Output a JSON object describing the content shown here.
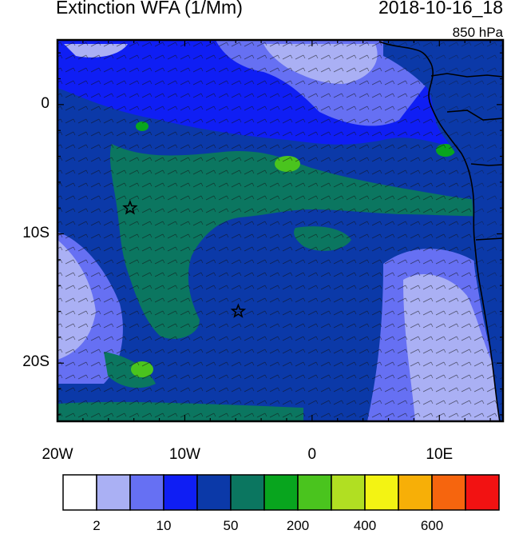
{
  "header": {
    "title": "Extinction WFA (1/Mm)",
    "datetime": "2018-10-16_18",
    "level": "850 hPa"
  },
  "axes": {
    "lon_labels": [
      {
        "text": "20W",
        "lon": -20
      },
      {
        "text": "10W",
        "lon": -10
      },
      {
        "text": "0",
        "lon": 0
      },
      {
        "text": "10E",
        "lon": 10
      }
    ],
    "lat_labels": [
      {
        "text": "0",
        "lat": 0
      },
      {
        "text": "10S",
        "lat": -10
      },
      {
        "text": "20S",
        "lat": -20
      }
    ],
    "lon_range": [
      -20,
      15
    ],
    "lat_range": [
      -24.5,
      5
    ]
  },
  "markers": [
    {
      "name": "star-marker",
      "lon": -14.3,
      "lat": -8.0
    },
    {
      "name": "star-marker",
      "lon": -5.8,
      "lat": -16.0
    }
  ],
  "colorbar": {
    "colors": [
      "#ffffff",
      "#aab0f4",
      "#6670f3",
      "#0f1ef4",
      "#0b39a8",
      "#0b7660",
      "#08a51e",
      "#4ac41e",
      "#b1df22",
      "#f3f313",
      "#f7af07",
      "#f6650e",
      "#f21212"
    ],
    "labels": [
      {
        "text": "2",
        "boundary": 1
      },
      {
        "text": "10",
        "boundary": 3
      },
      {
        "text": "50",
        "boundary": 5
      },
      {
        "text": "200",
        "boundary": 7
      },
      {
        "text": "400",
        "boundary": 9
      },
      {
        "text": "600",
        "boundary": 11
      }
    ]
  }
}
